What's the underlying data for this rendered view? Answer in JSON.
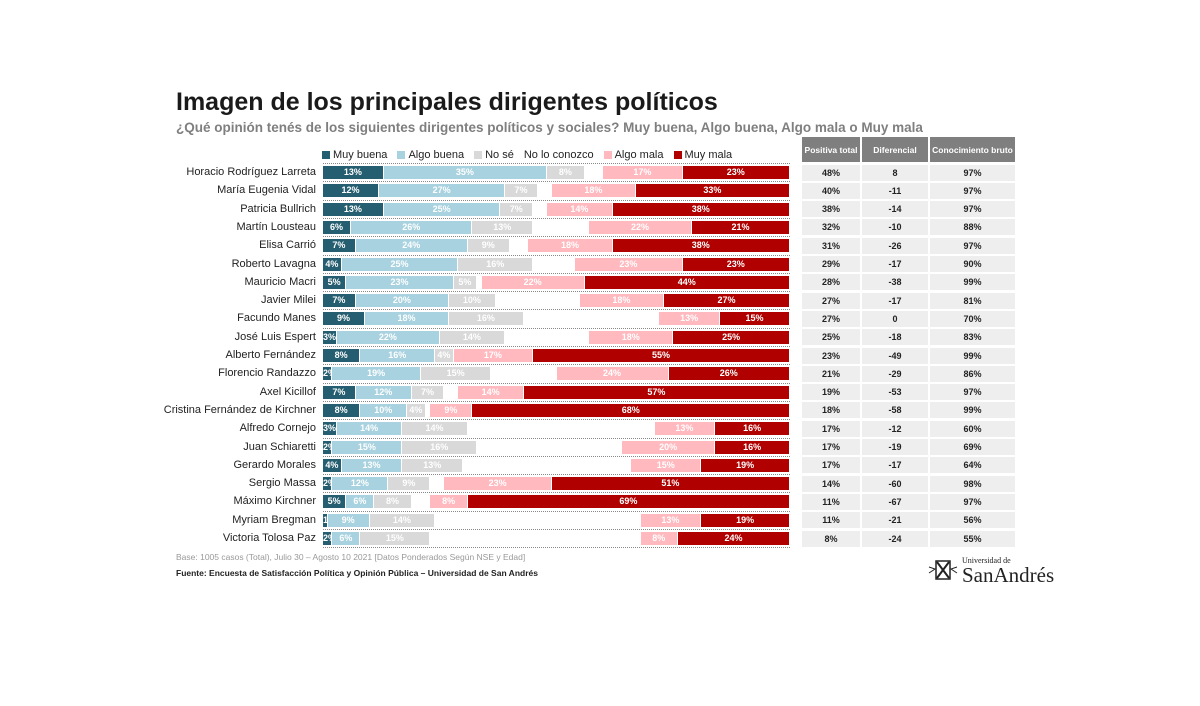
{
  "title": "Imagen de los principales dirigentes políticos",
  "subtitle": "¿Qué opinión tenés de los siguientes dirigentes políticos y sociales? Muy buena, Algo buena, Algo mala o Muy mala",
  "chart_data": {
    "type": "bar",
    "orientation": "horizontal-stacked",
    "unit": "%",
    "xlim": [
      0,
      100
    ],
    "legend_position": "top",
    "series": [
      {
        "name": "Muy buena",
        "color": "#255e70"
      },
      {
        "name": "Algo buena",
        "color": "#a8d2df"
      },
      {
        "name": "No sé",
        "color": "#d9d9d9"
      },
      {
        "name": "No lo conozco",
        "color": "#ffffff"
      },
      {
        "name": "Algo mala",
        "color": "#ffb9bf"
      },
      {
        "name": "Muy mala",
        "color": "#b00000"
      }
    ],
    "categories": [
      "Horacio Rodríguez Larreta",
      "María Eugenia Vidal",
      "Patricia Bullrich",
      "Martín Lousteau",
      "Elisa Carrió",
      "Roberto Lavagna",
      "Mauricio Macri",
      "Javier Milei",
      "Facundo Manes",
      "José Luis Espert",
      "Alberto Fernández",
      "Florencio Randazzo",
      "Axel Kicillof",
      "Cristina Fernández de Kirchner",
      "Alfredo Cornejo",
      "Juan Schiaretti",
      "Gerardo Morales",
      "Sergio Massa",
      "Máximo Kirchner",
      "Myriam Bregman",
      "Victoria Tolosa Paz"
    ],
    "values": [
      [
        13,
        35,
        8,
        4,
        17,
        23
      ],
      [
        12,
        27,
        7,
        3,
        18,
        33
      ],
      [
        13,
        25,
        7,
        3,
        14,
        38
      ],
      [
        6,
        26,
        13,
        12,
        22,
        21
      ],
      [
        7,
        24,
        9,
        4,
        18,
        38
      ],
      [
        4,
        25,
        16,
        9,
        23,
        23
      ],
      [
        5,
        23,
        5,
        1,
        22,
        44
      ],
      [
        7,
        20,
        10,
        18,
        18,
        27
      ],
      [
        9,
        18,
        16,
        29,
        13,
        15
      ],
      [
        3,
        22,
        14,
        18,
        18,
        25
      ],
      [
        8,
        16,
        4,
        0,
        17,
        55
      ],
      [
        2,
        19,
        15,
        14,
        24,
        26
      ],
      [
        7,
        12,
        7,
        3,
        14,
        57
      ],
      [
        8,
        10,
        4,
        1,
        9,
        68
      ],
      [
        3,
        14,
        14,
        40,
        13,
        16
      ],
      [
        2,
        15,
        16,
        31,
        20,
        16
      ],
      [
        4,
        13,
        13,
        36,
        15,
        19
      ],
      [
        2,
        12,
        9,
        3,
        23,
        51
      ],
      [
        5,
        6,
        8,
        4,
        8,
        69
      ],
      [
        1,
        9,
        14,
        44,
        13,
        19
      ],
      [
        2,
        6,
        15,
        45,
        8,
        24
      ]
    ]
  },
  "table": {
    "headers": [
      "Positiva total",
      "Diferencial",
      "Conocimiento bruto"
    ],
    "rows": [
      [
        "48%",
        "8",
        "97%"
      ],
      [
        "40%",
        "-11",
        "97%"
      ],
      [
        "38%",
        "-14",
        "97%"
      ],
      [
        "32%",
        "-10",
        "88%"
      ],
      [
        "31%",
        "-26",
        "97%"
      ],
      [
        "29%",
        "-17",
        "90%"
      ],
      [
        "28%",
        "-38",
        "99%"
      ],
      [
        "27%",
        "-17",
        "81%"
      ],
      [
        "27%",
        "0",
        "70%"
      ],
      [
        "25%",
        "-18",
        "83%"
      ],
      [
        "23%",
        "-49",
        "99%"
      ],
      [
        "21%",
        "-29",
        "86%"
      ],
      [
        "19%",
        "-53",
        "97%"
      ],
      [
        "18%",
        "-58",
        "99%"
      ],
      [
        "17%",
        "-12",
        "60%"
      ],
      [
        "17%",
        "-19",
        "69%"
      ],
      [
        "17%",
        "-17",
        "64%"
      ],
      [
        "14%",
        "-60",
        "98%"
      ],
      [
        "11%",
        "-67",
        "97%"
      ],
      [
        "11%",
        "-21",
        "56%"
      ],
      [
        "8%",
        "-24",
        "55%"
      ]
    ]
  },
  "footer": {
    "base": "Base: 1005 casos (Total), Julio 30 – Agosto 10 2021 [Datos Ponderados Según NSE y Edad]",
    "source": "Fuente: Encuesta de Satisfacción Política y Opinión Pública – Universidad de San Andrés"
  },
  "logo": {
    "small": "Universidad de",
    "big": "SanAndrés"
  }
}
